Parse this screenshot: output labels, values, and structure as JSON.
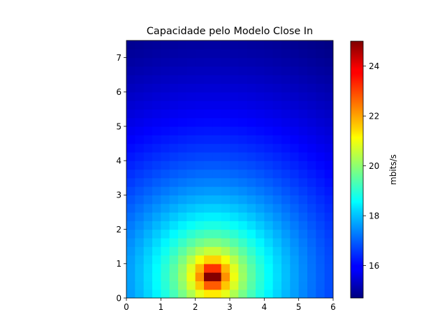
{
  "chart_data": {
    "type": "heatmap",
    "title": "Capacidade pelo Modelo Close In",
    "xlabel": "",
    "ylabel": "",
    "xlim": [
      0,
      6
    ],
    "ylim": [
      0,
      7.5
    ],
    "x_ticks": [
      "0",
      "1",
      "2",
      "3",
      "4",
      "5",
      "6"
    ],
    "y_ticks": [
      "0",
      "1",
      "2",
      "3",
      "4",
      "5",
      "6",
      "7"
    ],
    "grid": false,
    "colormap": "jet",
    "source_point": {
      "x": 2.5,
      "y": 0.65
    },
    "grid_resolution": 0.25,
    "field": {
      "formula": "capacity falls off logarithmically with distance from the source point",
      "peak_value": 25.0,
      "min_value": 14.7
    },
    "colorbar": {
      "label": "mbits/s",
      "range": [
        14.7,
        25.0
      ],
      "ticks": [
        "16",
        "18",
        "20",
        "22",
        "24"
      ]
    }
  }
}
